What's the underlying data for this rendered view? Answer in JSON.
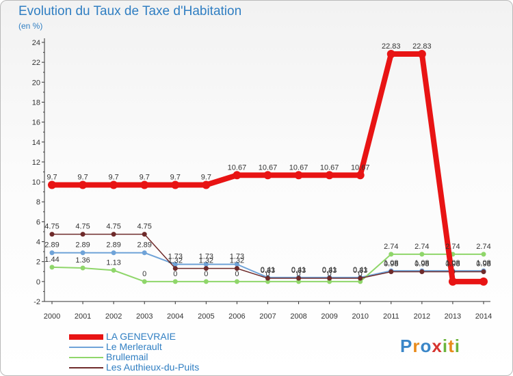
{
  "header": {
    "title": "Evolution du Taux de Taxe d'Habitation",
    "subtitle": "(en %)"
  },
  "brand": {
    "letters": [
      "P",
      "r",
      "o",
      "x",
      "i",
      "t",
      "i"
    ],
    "colors": [
      "#3a86c8",
      "#e88a1a",
      "#3a86c8",
      "#d6342f",
      "#6bb43c",
      "#e88a1a",
      "#6bb43c"
    ]
  },
  "chart_data": {
    "type": "line",
    "title": "Evolution du Taux de Taxe d'Habitation",
    "subtitle": "(en %)",
    "x": [
      "2000",
      "2001",
      "2002",
      "2003",
      "2004",
      "2005",
      "2006",
      "2007",
      "2008",
      "2009",
      "2010",
      "2011",
      "2012",
      "2013",
      "2014"
    ],
    "yticks": [
      "-2",
      "0",
      "2",
      "4",
      "6",
      "8",
      "10",
      "12",
      "14",
      "16",
      "18",
      "20",
      "22",
      "24"
    ],
    "ylim": [
      -2,
      24
    ],
    "grid": false,
    "legend_position": "bottom-left",
    "series": [
      {
        "name": "LA GENEVRAIE",
        "color": "#e81414",
        "width": 8,
        "marker": 6,
        "values": [
          9.7,
          9.7,
          9.7,
          9.7,
          9.7,
          9.7,
          10.67,
          10.67,
          10.67,
          10.67,
          10.67,
          22.83,
          22.83,
          0,
          0
        ],
        "labels": [
          "9.7",
          "9.7",
          "9.7",
          "9.7",
          "9.7",
          "9.7",
          "10.67",
          "10.67",
          "10.67",
          "10.67",
          "10.67",
          "22.83",
          "22.83",
          "",
          ""
        ]
      },
      {
        "name": "Le Merlerault",
        "color": "#6fa3d8",
        "width": 2,
        "marker": 3.5,
        "values": [
          2.89,
          2.89,
          2.89,
          2.89,
          1.73,
          1.73,
          1.73,
          0.41,
          0.41,
          0.41,
          0.41,
          1.08,
          1.08,
          1.08,
          1.08
        ],
        "labels": [
          "2.89",
          "2.89",
          "2.89",
          "2.89",
          "1.73",
          "1.73",
          "1.73",
          "0.41",
          "0.41",
          "0.41",
          "0.41",
          "1.08",
          "1.08",
          "1.08",
          "1.08"
        ]
      },
      {
        "name": "Brullemail",
        "color": "#8fd66a",
        "width": 2,
        "marker": 3.5,
        "values": [
          1.44,
          1.36,
          1.13,
          0,
          0,
          0,
          0,
          0,
          0,
          0,
          0,
          2.74,
          2.74,
          2.74,
          2.74
        ],
        "labels": [
          "1.44",
          "1.36",
          "1.13",
          "0",
          "0",
          "0",
          "0",
          "0",
          "0",
          "0",
          "0",
          "2.74",
          "2.74",
          "2.74",
          "2.74"
        ]
      },
      {
        "name": "Les Authieux-du-Puits",
        "color": "#6e2a2a",
        "width": 1.5,
        "marker": 3.5,
        "values": [
          4.75,
          4.75,
          4.75,
          4.75,
          1.32,
          1.32,
          1.32,
          0.33,
          0.33,
          0.33,
          0.33,
          0.98,
          0.98,
          0.98,
          0.98
        ],
        "labels": [
          "4.75",
          "4.75",
          "4.75",
          "4.75",
          "1.32",
          "1.32",
          "1.32",
          "0.33",
          "0.33",
          "0.33",
          "0.33",
          "0.98",
          "0.98",
          "0.98",
          "0.98"
        ]
      }
    ]
  }
}
